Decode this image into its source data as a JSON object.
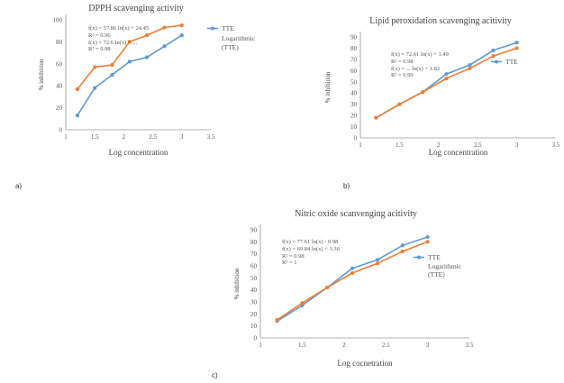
{
  "panel_labels": [
    "a)",
    "b)",
    "c)"
  ],
  "chart_data": [
    {
      "type": "line",
      "title": "DPPH scavenging activity",
      "xlabel": "Log concentration",
      "ylabel": "% inhibition",
      "xlim": [
        1,
        3.5
      ],
      "ylim": [
        0,
        100
      ],
      "xticks": [
        "1",
        "1.5",
        "2",
        "2.5",
        "3",
        "3.5"
      ],
      "yticks": [
        "0",
        "20",
        "40",
        "60",
        "80",
        "100"
      ],
      "grid": false,
      "legend": [
        "TTE",
        "Logarithmic (TTE)"
      ],
      "legend_position": "right",
      "annotations": [
        "f(x) = 57.86 ln(x) + 24.45",
        "R² = 0.96",
        "f(x) = 72.6 ln(x) + ...",
        "R² = 0.98"
      ],
      "series": [
        {
          "color": "#ed7d31",
          "x": [
            1.2,
            1.5,
            1.8,
            2.1,
            2.4,
            2.7,
            3.0
          ],
          "y": [
            37,
            57,
            59,
            80,
            86,
            93,
            95
          ]
        },
        {
          "color": "#5b9bd5",
          "x": [
            1.2,
            1.5,
            1.8,
            2.1,
            2.4,
            2.7,
            3.0
          ],
          "y": [
            13,
            38,
            50,
            62,
            66,
            76,
            86
          ]
        }
      ]
    },
    {
      "type": "line",
      "title": "Lipid peroxidation scavenging acitivity",
      "xlabel": "Log concentration",
      "ylabel": "% inhibition",
      "xlim": [
        1,
        3.5
      ],
      "ylim": [
        0,
        90
      ],
      "xticks": [
        "1",
        "1.5",
        "2",
        "2.5",
        "3",
        "3.5"
      ],
      "yticks": [
        "0",
        "10",
        "20",
        "30",
        "40",
        "50",
        "60",
        "70",
        "80",
        "90"
      ],
      "grid": false,
      "legend": [
        "TTE"
      ],
      "legend_position": "right",
      "annotations": [
        "f(x) = 72.61 ln(x) + 1.49",
        "R² = 0.98",
        "f(x) = ... ln(x) + 1.82",
        "R² = 0.99"
      ],
      "series": [
        {
          "color": "#5b9bd5",
          "x": [
            1.2,
            1.5,
            1.8,
            2.1,
            2.4,
            2.7,
            3.0
          ],
          "y": [
            18,
            30,
            41,
            57,
            65,
            78,
            85
          ]
        },
        {
          "color": "#ed7d31",
          "x": [
            1.2,
            1.5,
            1.8,
            2.1,
            2.4,
            2.7,
            3.0
          ],
          "y": [
            18,
            30,
            41,
            53,
            62,
            73,
            80
          ]
        }
      ]
    },
    {
      "type": "line",
      "title": "Nitric oxide scanvenging acitivity",
      "xlabel": "Log cocnetration",
      "ylabel": "% inhibition",
      "xlim": [
        1,
        3.5
      ],
      "ylim": [
        0,
        90
      ],
      "xticks": [
        "1",
        "1.5",
        "2",
        "2.5",
        "3",
        "3.5"
      ],
      "yticks": [
        "0",
        "10",
        "20",
        "30",
        "40",
        "50",
        "60",
        "70",
        "80",
        "90"
      ],
      "grid": false,
      "legend": [
        "TTE",
        "Logarithmic (TTE)"
      ],
      "legend_position": "right",
      "annotations": [
        "f(x) = 77.61 ln(x) - 0.98",
        "f(x) = 69.84 ln(x) + 1.36",
        "R² = 0.98",
        "R² = 1"
      ],
      "series": [
        {
          "color": "#5b9bd5",
          "x": [
            1.2,
            1.5,
            1.8,
            2.1,
            2.4,
            2.7,
            3.0
          ],
          "y": [
            14,
            27,
            42,
            58,
            65,
            77,
            84
          ]
        },
        {
          "color": "#ed7d31",
          "x": [
            1.2,
            1.5,
            1.8,
            2.1,
            2.4,
            2.7,
            3.0
          ],
          "y": [
            15,
            29,
            42,
            54,
            62,
            72,
            80
          ]
        }
      ]
    }
  ]
}
